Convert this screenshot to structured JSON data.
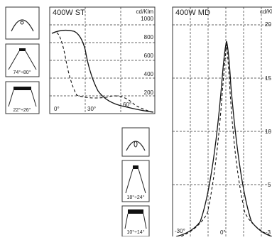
{
  "left_chart": {
    "title": "400W ST",
    "unit": "cd/Klm",
    "yticks": [
      "1000",
      "800",
      "600",
      "400",
      "200"
    ],
    "xticks": [
      "0°",
      "30°",
      "60°"
    ]
  },
  "right_chart": {
    "title": "400W MD",
    "unit": "cd/Klm",
    "yticks": [
      "20",
      "15",
      "10",
      "5"
    ],
    "xticks": [
      "-30°",
      "0°",
      "-3"
    ]
  },
  "icons": {
    "left": [
      "74°÷80°",
      "22°÷26°"
    ],
    "middle": [
      "18°÷24°",
      "10°÷14°"
    ]
  }
}
